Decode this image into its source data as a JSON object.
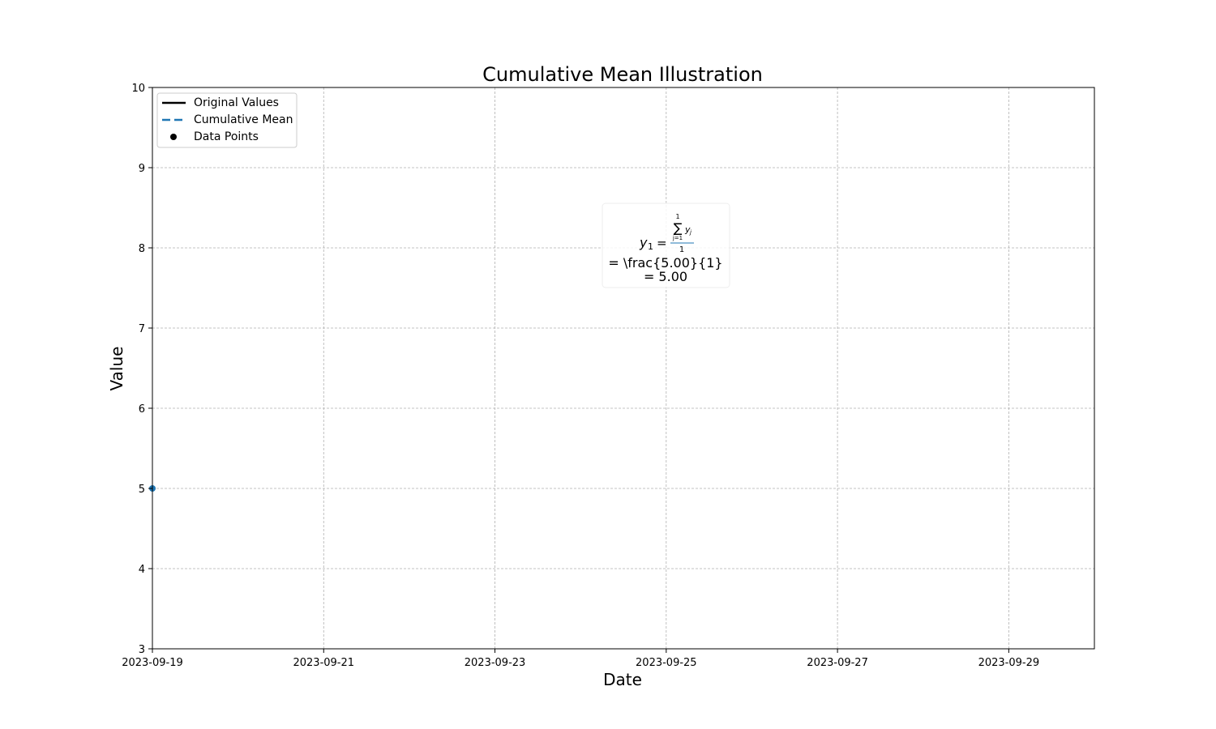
{
  "chart_data": {
    "type": "line",
    "title": "Cumulative Mean Illustration",
    "xlabel": "Date",
    "ylabel": "Value",
    "x_axis_type": "date",
    "xlim": [
      "2023-09-19",
      "2023-09-30"
    ],
    "ylim": [
      3,
      10
    ],
    "x_ticks": [
      "2023-09-19",
      "2023-09-21",
      "2023-09-23",
      "2023-09-25",
      "2023-09-27",
      "2023-09-29"
    ],
    "y_ticks": [
      3,
      4,
      5,
      6,
      7,
      8,
      9,
      10
    ],
    "grid": true,
    "legend_position": "upper-left",
    "series": [
      {
        "name": "Original Values",
        "style": "solid",
        "color": "#000000",
        "x": [
          "2023-09-19"
        ],
        "y": [
          5
        ]
      },
      {
        "name": "Cumulative Mean",
        "style": "dashed",
        "color": "#1f77b4",
        "x": [
          "2023-09-19"
        ],
        "y": [
          5
        ]
      },
      {
        "name": "Data Points",
        "style": "marker",
        "color": "#1f77b4",
        "x": [
          "2023-09-19"
        ],
        "y": [
          5
        ]
      }
    ],
    "legend_marker_color": "#000000",
    "annotation": {
      "color": "#1f77b4",
      "anchor_x": "2023-09-25",
      "anchor_y": 8,
      "formula": {
        "lhs_var": "y",
        "lhs_sub": "1",
        "equals": "=",
        "sum_symbol": "∑",
        "sum_upper": "1",
        "sum_lower": "j=1",
        "summand_var": "y",
        "summand_sub": "j",
        "denominator": "1"
      },
      "line2": "= \\frac{5.00}{1}",
      "line3": "= 5.00"
    }
  }
}
